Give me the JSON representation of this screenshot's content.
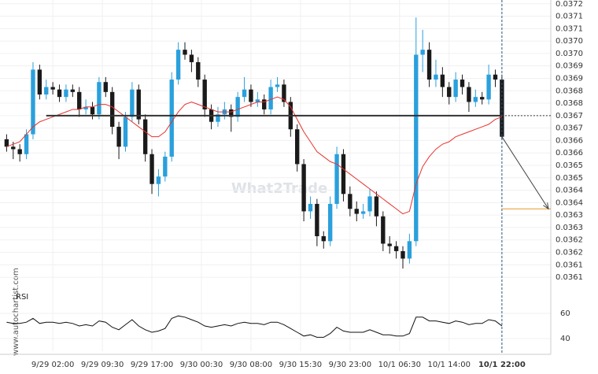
{
  "chart_data": {
    "type": "candlestick",
    "watermark": "What2Trade",
    "source": "www.autochartist.com",
    "up_color": "#2aa0dc",
    "down_color": "#1a1a1a",
    "grid": true,
    "xlim": [
      -1,
      82.4
    ],
    "xticks": [
      {
        "value": 7,
        "label": "9/29 02:00"
      },
      {
        "value": 14.5,
        "label": "9/29 09:30"
      },
      {
        "value": 22,
        "label": "9/29 17:00"
      },
      {
        "value": 29.5,
        "label": "9/30 00:30"
      },
      {
        "value": 37,
        "label": "9/30 08:00"
      },
      {
        "value": 44.5,
        "label": "9/30 15:30"
      },
      {
        "value": 52,
        "label": "9/30 23:00"
      },
      {
        "value": 59.5,
        "label": "10/1 06:30"
      },
      {
        "value": 67,
        "label": "10/1 14:00"
      },
      {
        "value": 75,
        "label": "10/1 22:00"
      }
    ],
    "ylim": [
      0.03605,
      0.03719
    ],
    "yticks": [
      {
        "value": 0.037175,
        "label": "0.0372"
      },
      {
        "value": 0.037125,
        "label": "0.0371"
      },
      {
        "value": 0.037075,
        "label": "0.0371"
      },
      {
        "value": 0.037025,
        "label": "0.0370"
      },
      {
        "value": 0.036975,
        "label": "0.0370"
      },
      {
        "value": 0.036925,
        "label": "0.0369"
      },
      {
        "value": 0.036875,
        "label": "0.0369"
      },
      {
        "value": 0.036825,
        "label": "0.0368"
      },
      {
        "value": 0.036775,
        "label": "0.0368"
      },
      {
        "value": 0.036725,
        "label": "0.0367"
      },
      {
        "value": 0.036675,
        "label": "0.0367"
      },
      {
        "value": 0.036625,
        "label": "0.0366"
      },
      {
        "value": 0.036575,
        "label": "0.0366"
      },
      {
        "value": 0.036525,
        "label": "0.0365"
      },
      {
        "value": 0.036475,
        "label": "0.0365"
      },
      {
        "value": 0.036425,
        "label": "0.0364"
      },
      {
        "value": 0.036375,
        "label": "0.0364"
      },
      {
        "value": 0.036325,
        "label": "0.0363"
      },
      {
        "value": 0.036275,
        "label": "0.0363"
      },
      {
        "value": 0.036225,
        "label": "0.0362"
      },
      {
        "value": 0.036175,
        "label": "0.0362"
      },
      {
        "value": 0.036125,
        "label": "0.0361"
      },
      {
        "value": 0.036075,
        "label": "0.0361"
      }
    ],
    "open": [
      0.03663,
      0.0366,
      0.03659,
      0.03657,
      0.03665,
      0.03691,
      0.03681,
      0.03684,
      0.03683,
      0.0368,
      0.03683,
      0.03682,
      0.03675,
      0.03676,
      0.03673,
      0.03686,
      0.03682,
      0.03668,
      0.0366,
      0.03672,
      0.03683,
      0.03671,
      0.03657,
      0.03645,
      0.03648,
      0.03656,
      0.03687,
      0.03699,
      0.03697,
      0.03694,
      0.03687,
      0.03675,
      0.0367,
      0.03673,
      0.03675,
      0.03672,
      0.0368,
      0.03683,
      0.03678,
      0.03679,
      0.03675,
      0.03684,
      0.03685,
      0.03678,
      0.03667,
      0.03653,
      0.03634,
      0.03637,
      0.03624,
      0.03622,
      0.03637,
      0.03657,
      0.03641,
      0.03635,
      0.03633,
      0.03634,
      0.0364,
      0.03632,
      0.03621,
      0.0362,
      0.03618,
      0.03615,
      0.03622,
      0.03697,
      0.03699,
      0.03687,
      0.03689,
      0.03684,
      0.0368,
      0.03687,
      0.03684,
      0.03678,
      0.0368,
      0.03679,
      0.03689,
      0.03687
    ],
    "high": [
      0.03665,
      0.03662,
      0.03661,
      0.03667,
      0.03694,
      0.03693,
      0.03687,
      0.03686,
      0.03685,
      0.03685,
      0.03685,
      0.03684,
      0.03679,
      0.03678,
      0.03688,
      0.03688,
      0.03684,
      0.0367,
      0.03674,
      0.03686,
      0.03685,
      0.03673,
      0.03659,
      0.03651,
      0.03658,
      0.0369,
      0.03702,
      0.03702,
      0.03699,
      0.03696,
      0.03689,
      0.03677,
      0.03676,
      0.03678,
      0.03677,
      0.03682,
      0.03688,
      0.03685,
      0.03682,
      0.03681,
      0.03687,
      0.03688,
      0.03687,
      0.0368,
      0.03669,
      0.03655,
      0.0364,
      0.03639,
      0.03626,
      0.0364,
      0.0366,
      0.03659,
      0.03644,
      0.03638,
      0.03637,
      0.03643,
      0.03642,
      0.03634,
      0.03624,
      0.03622,
      0.0362,
      0.03625,
      0.03712,
      0.03707,
      0.03702,
      0.03695,
      0.03692,
      0.03686,
      0.0369,
      0.03689,
      0.03686,
      0.03683,
      0.03682,
      0.03693,
      0.03691,
      0.03689
    ],
    "low": [
      0.03658,
      0.03655,
      0.03654,
      0.03655,
      0.03663,
      0.03679,
      0.03679,
      0.03681,
      0.03678,
      0.03678,
      0.0368,
      0.03672,
      0.03673,
      0.03671,
      0.03671,
      0.0368,
      0.03665,
      0.03655,
      0.03658,
      0.0367,
      0.03669,
      0.03654,
      0.03641,
      0.0364,
      0.03646,
      0.03654,
      0.03685,
      0.03695,
      0.0369,
      0.03684,
      0.03672,
      0.03667,
      0.03668,
      0.03671,
      0.03666,
      0.0367,
      0.03678,
      0.03676,
      0.03676,
      0.03673,
      0.03673,
      0.03682,
      0.03676,
      0.03664,
      0.0365,
      0.0363,
      0.03631,
      0.0362,
      0.03619,
      0.0362,
      0.03635,
      0.03638,
      0.03632,
      0.0363,
      0.03631,
      0.03632,
      0.03628,
      0.03618,
      0.03617,
      0.03615,
      0.03611,
      0.03613,
      0.0362,
      0.0369,
      0.03684,
      0.03684,
      0.0368,
      0.03677,
      0.03678,
      0.03681,
      0.03674,
      0.03676,
      0.03677,
      0.03677,
      0.03684,
      0.03663
    ],
    "close": [
      0.0366,
      0.03659,
      0.03657,
      0.03665,
      0.03691,
      0.03681,
      0.03684,
      0.03683,
      0.0368,
      0.03683,
      0.03682,
      0.03675,
      0.03676,
      0.03673,
      0.03686,
      0.03682,
      0.03668,
      0.0366,
      0.03672,
      0.03683,
      0.03671,
      0.03657,
      0.03645,
      0.03648,
      0.03656,
      0.03687,
      0.03699,
      0.03697,
      0.03694,
      0.03687,
      0.03675,
      0.0367,
      0.03673,
      0.03675,
      0.03672,
      0.0368,
      0.03683,
      0.03678,
      0.03679,
      0.03675,
      0.03684,
      0.03685,
      0.03678,
      0.03667,
      0.03653,
      0.03634,
      0.03637,
      0.03624,
      0.03622,
      0.03637,
      0.03657,
      0.03641,
      0.03635,
      0.03633,
      0.03634,
      0.0364,
      0.03632,
      0.03621,
      0.0362,
      0.03618,
      0.03615,
      0.03622,
      0.03697,
      0.03699,
      0.03687,
      0.03689,
      0.03684,
      0.0368,
      0.03687,
      0.03684,
      0.03678,
      0.0368,
      0.03679,
      0.03689,
      0.03687,
      0.03664
    ],
    "moving_average": {
      "color": "#e8322e",
      "values": [
        0.0366,
        0.03661,
        0.03662,
        0.03665,
        0.03668,
        0.0367,
        0.03671,
        0.03672,
        0.03673,
        0.03674,
        0.03675,
        0.03675,
        0.03676,
        0.03676,
        0.03677,
        0.03677,
        0.03676,
        0.03674,
        0.03672,
        0.0367,
        0.03668,
        0.03666,
        0.03664,
        0.03664,
        0.03666,
        0.0367,
        0.03674,
        0.03677,
        0.03678,
        0.03677,
        0.03676,
        0.03675,
        0.03674,
        0.03674,
        0.03674,
        0.03675,
        0.03676,
        0.03677,
        0.03678,
        0.03678,
        0.03679,
        0.0368,
        0.03679,
        0.03676,
        0.03671,
        0.03666,
        0.03662,
        0.03658,
        0.03656,
        0.03654,
        0.03653,
        0.03651,
        0.03649,
        0.03647,
        0.03645,
        0.03643,
        0.03641,
        0.03639,
        0.03637,
        0.03635,
        0.03633,
        0.03634,
        0.03645,
        0.03652,
        0.03656,
        0.03659,
        0.03661,
        0.03662,
        0.03664,
        0.03665,
        0.03666,
        0.03667,
        0.03668,
        0.03669,
        0.03671,
        0.03672
      ]
    },
    "level": {
      "value": 0.036725,
      "color": "#333333"
    },
    "target": {
      "value": 0.03635,
      "color": "#e8972e"
    },
    "rsi": {
      "label": "RSI",
      "color": "#111111",
      "ylim": [
        30,
        70
      ],
      "yticks": [
        60,
        40
      ],
      "values": [
        53,
        52,
        52,
        53,
        56,
        52,
        53,
        53,
        52,
        53,
        52,
        50,
        51,
        50,
        54,
        53,
        49,
        47,
        51,
        55,
        50,
        47,
        45,
        46,
        48,
        56,
        58,
        57,
        55,
        53,
        50,
        49,
        50,
        51,
        50,
        52,
        53,
        52,
        52,
        51,
        53,
        53,
        51,
        48,
        45,
        42,
        43,
        41,
        41,
        44,
        49,
        46,
        45,
        45,
        45,
        47,
        45,
        43,
        43,
        42,
        42,
        44,
        57,
        57,
        54,
        54,
        53,
        52,
        54,
        53,
        51,
        52,
        52,
        55,
        54,
        50
      ]
    }
  }
}
